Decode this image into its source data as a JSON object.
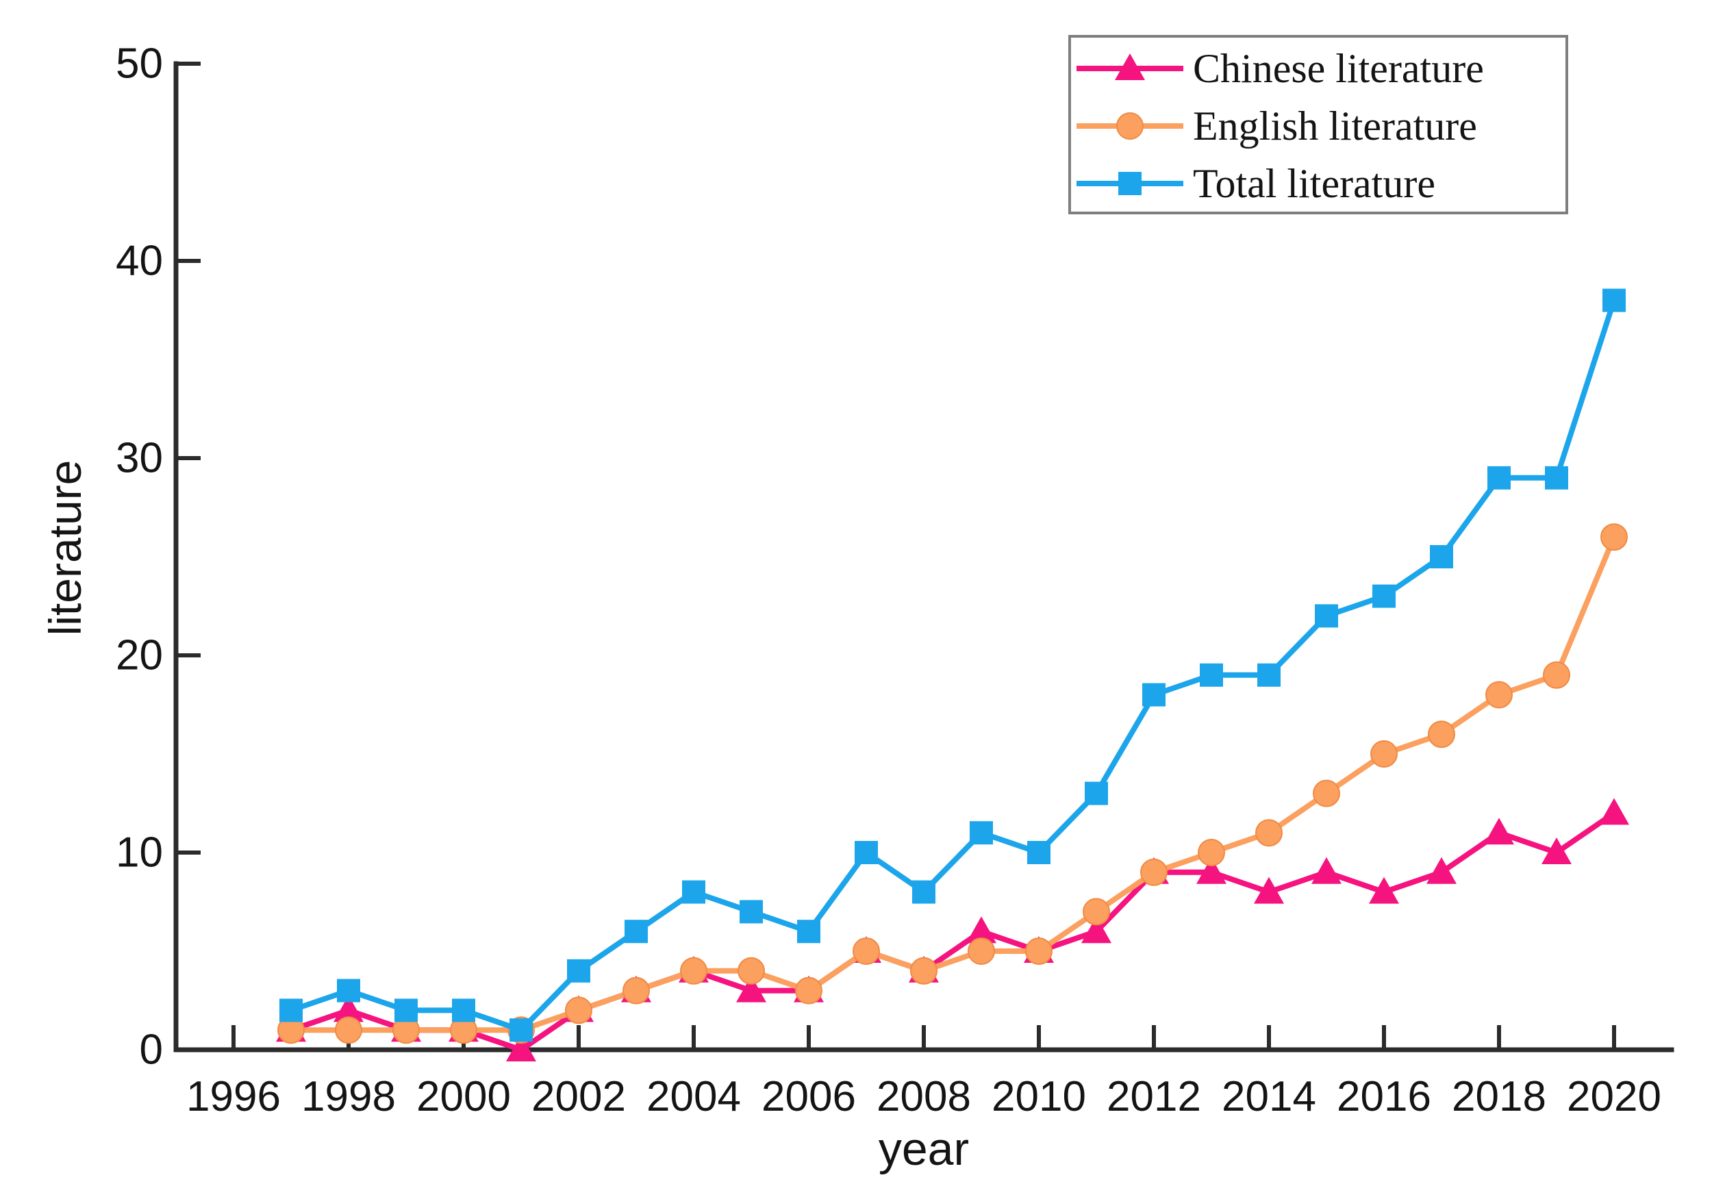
{
  "figure": {
    "background": "#ffffff"
  },
  "colors": {
    "axis": "#2b2b2b",
    "tick_label": "#141414",
    "axis_title": "#141414",
    "legend_border": "#7e7e7e",
    "legend_background": "#ffffff",
    "legend_text": "#141414",
    "chinese_series": "#F5137F",
    "english_series": "#FBA05E",
    "total_series": "#1CA5EB"
  },
  "chart_data": {
    "type": "line",
    "title": "",
    "xlabel": "year",
    "ylabel": "literature",
    "x": [
      1997,
      1998,
      1999,
      2000,
      2001,
      2002,
      2003,
      2004,
      2005,
      2006,
      2007,
      2008,
      2009,
      2010,
      2011,
      2012,
      2013,
      2014,
      2015,
      2016,
      2017,
      2018,
      2019,
      2020
    ],
    "series": [
      {
        "name": "Chinese literature",
        "marker": "triangle",
        "color": "#F5137F",
        "values": [
          1,
          2,
          1,
          1,
          0,
          2,
          3,
          4,
          3,
          3,
          5,
          4,
          6,
          5,
          6,
          9,
          9,
          8,
          9,
          8,
          9,
          11,
          10,
          12
        ]
      },
      {
        "name": "English literature",
        "marker": "circle",
        "color": "#FBA05E",
        "values": [
          1,
          1,
          1,
          1,
          1,
          2,
          3,
          4,
          4,
          3,
          5,
          4,
          5,
          5,
          7,
          9,
          10,
          11,
          13,
          15,
          16,
          18,
          19,
          26
        ]
      },
      {
        "name": "Total literature",
        "marker": "square",
        "color": "#1CA5EB",
        "values": [
          2,
          3,
          2,
          2,
          1,
          4,
          6,
          8,
          7,
          6,
          10,
          8,
          11,
          10,
          13,
          18,
          19,
          19,
          22,
          23,
          25,
          29,
          29,
          38
        ]
      }
    ],
    "xticks": [
      1996,
      1998,
      2000,
      2002,
      2004,
      2006,
      2008,
      2010,
      2012,
      2014,
      2016,
      2018,
      2020
    ],
    "yticks": [
      0,
      10,
      20,
      30,
      40,
      50
    ],
    "xlim": [
      1995,
      2021
    ],
    "ylim": [
      0,
      50
    ],
    "grid": false,
    "legend_position": "top-right"
  }
}
